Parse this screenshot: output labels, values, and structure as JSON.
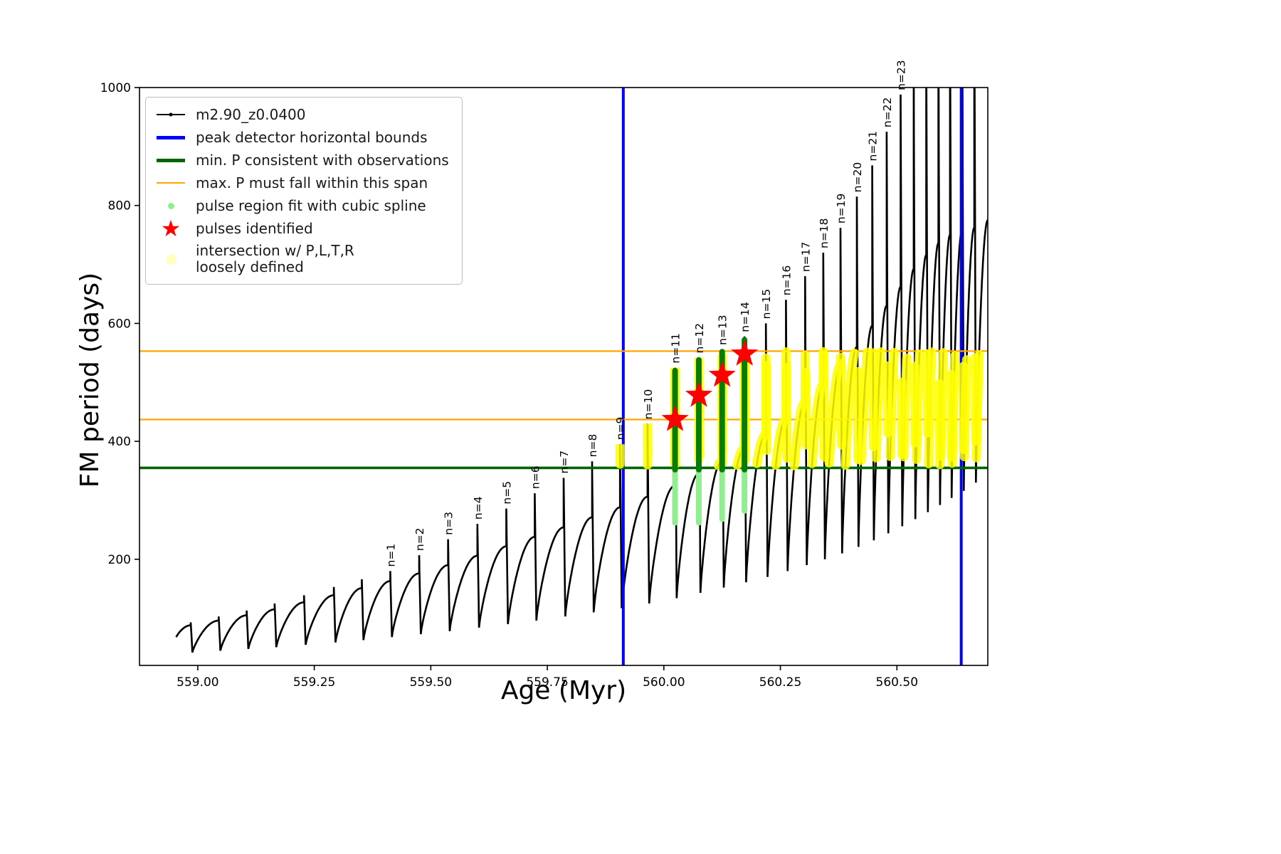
{
  "figure": {
    "background": "#ffffff"
  },
  "legend": {
    "items": [
      {
        "label": "m2.90_z0.0400",
        "marker": "line-dot",
        "color": "#000000"
      },
      {
        "label": "peak detector horizontal bounds",
        "marker": "thick-line",
        "color": "#0000ff"
      },
      {
        "label": "min. P consistent with observations",
        "marker": "thick-line",
        "color": "#006400"
      },
      {
        "label": "max. P must fall within this span",
        "marker": "line",
        "color": "#ffa500"
      },
      {
        "label": "pulse region fit with cubic spline",
        "marker": "dot",
        "color": "#90ee90"
      },
      {
        "label": "pulses identified",
        "marker": "star",
        "color": "#ff0000"
      },
      {
        "label": "intersection w/ P,L,T,R\nloosely defined",
        "marker": "dot-large",
        "color": "#ffffc2"
      }
    ]
  },
  "chart_data": {
    "type": "line",
    "series_name": "m2.90_z0.0400",
    "title": "",
    "xlabel": "Age (Myr)",
    "ylabel": "FM period (days)",
    "xlim": [
      558.875,
      560.695
    ],
    "ylim": [
      20,
      1000
    ],
    "grid": false,
    "legend_position": "upper-left",
    "x_ticks": [
      {
        "value": 559.0,
        "label": "559.00"
      },
      {
        "value": 559.25,
        "label": "559.25"
      },
      {
        "value": 559.5,
        "label": "559.50"
      },
      {
        "value": 559.75,
        "label": "559.75"
      },
      {
        "value": 560.0,
        "label": "560.00"
      },
      {
        "value": 560.25,
        "label": "560.25"
      },
      {
        "value": 560.5,
        "label": "560.50"
      }
    ],
    "y_ticks": [
      {
        "value": 200,
        "label": "200"
      },
      {
        "value": 400,
        "label": "400"
      },
      {
        "value": 600,
        "label": "600"
      },
      {
        "value": 800,
        "label": "800"
      },
      {
        "value": 1000,
        "label": "1000"
      }
    ],
    "curve_color": "#000000",
    "curve_start": {
      "age": 558.954,
      "value": 68
    },
    "final_hump": 775,
    "vertical_bounds": {
      "color": "#0000ff",
      "ages": [
        559.913,
        560.638
      ]
    },
    "min_p_line": {
      "color": "#006400",
      "value": 355
    },
    "max_p_span": {
      "color": "#ffa500",
      "values": [
        437,
        553
      ]
    },
    "yellow_band": {
      "color": "#ffff00",
      "age_min": 559.88,
      "period_range": [
        358,
        552
      ]
    },
    "pale_green_color": "#90ee90",
    "dark_green_color": "#067d06",
    "star_color": "#ff0000",
    "stars": [
      {
        "age": 560.024,
        "period": 437
      },
      {
        "age": 560.075,
        "period": 478
      },
      {
        "age": 560.125,
        "period": 512
      },
      {
        "age": 560.173,
        "period": 548
      }
    ],
    "pale_green_columns": [
      {
        "age": 560.024,
        "from": 262,
        "to": 352
      },
      {
        "age": 560.075,
        "from": 262,
        "to": 352
      },
      {
        "age": 560.125,
        "from": 268,
        "to": 352
      },
      {
        "age": 560.173,
        "from": 282,
        "to": 352
      }
    ],
    "dark_green_columns": [
      {
        "age": 560.024,
        "from": 352,
        "to": 520
      },
      {
        "age": 560.075,
        "from": 352,
        "to": 538
      },
      {
        "age": 560.125,
        "from": 352,
        "to": 552
      },
      {
        "age": 560.173,
        "from": 352,
        "to": 572
      }
    ],
    "pulses": [
      {
        "age": 558.985,
        "hump": 88,
        "spike": 93,
        "min_next": 42,
        "label": ""
      },
      {
        "age": 559.045,
        "hump": 96,
        "spike": 103,
        "min_next": 45,
        "label": ""
      },
      {
        "age": 559.105,
        "hump": 105,
        "spike": 113,
        "min_next": 48,
        "label": ""
      },
      {
        "age": 559.165,
        "hump": 115,
        "spike": 125,
        "min_next": 51,
        "label": ""
      },
      {
        "age": 559.228,
        "hump": 127,
        "spike": 139,
        "min_next": 55,
        "label": ""
      },
      {
        "age": 559.292,
        "hump": 139,
        "spike": 153,
        "min_next": 59,
        "label": ""
      },
      {
        "age": 559.352,
        "hump": 151,
        "spike": 166,
        "min_next": 63,
        "label": ""
      },
      {
        "age": 559.413,
        "hump": 163,
        "spike": 180,
        "min_next": 68,
        "label": "n=1"
      },
      {
        "age": 559.475,
        "hump": 176,
        "spike": 207,
        "min_next": 73,
        "label": "n=2"
      },
      {
        "age": 559.537,
        "hump": 190,
        "spike": 234,
        "min_next": 78,
        "label": "n=3"
      },
      {
        "age": 559.6,
        "hump": 206,
        "spike": 260,
        "min_next": 84,
        "label": "n=4"
      },
      {
        "age": 559.662,
        "hump": 222,
        "spike": 286,
        "min_next": 90,
        "label": "n=5"
      },
      {
        "age": 559.723,
        "hump": 238,
        "spike": 312,
        "min_next": 96,
        "label": "n=6"
      },
      {
        "age": 559.785,
        "hump": 254,
        "spike": 338,
        "min_next": 103,
        "label": "n=7"
      },
      {
        "age": 559.846,
        "hump": 271,
        "spike": 366,
        "min_next": 110,
        "label": "n=8"
      },
      {
        "age": 559.906,
        "hump": 288,
        "spike": 395,
        "min_next": 117,
        "label": "n=9"
      },
      {
        "age": 559.965,
        "hump": 306,
        "spike": 430,
        "min_next": 125,
        "label": "n=10"
      },
      {
        "age": 560.024,
        "hump": 325,
        "spike": 525,
        "min_next": 134,
        "label": "n=11"
      },
      {
        "age": 560.075,
        "hump": 345,
        "spike": 542,
        "min_next": 143,
        "label": "n=12"
      },
      {
        "age": 560.125,
        "hump": 366,
        "spike": 556,
        "min_next": 152,
        "label": "n=13"
      },
      {
        "age": 560.173,
        "hump": 388,
        "spike": 578,
        "min_next": 161,
        "label": "n=14"
      },
      {
        "age": 560.219,
        "hump": 412,
        "spike": 600,
        "min_next": 170,
        "label": "n=15"
      },
      {
        "age": 560.262,
        "hump": 438,
        "spike": 640,
        "min_next": 180,
        "label": "n=16"
      },
      {
        "age": 560.303,
        "hump": 466,
        "spike": 680,
        "min_next": 190,
        "label": "n=17"
      },
      {
        "age": 560.342,
        "hump": 496,
        "spike": 720,
        "min_next": 200,
        "label": "n=18"
      },
      {
        "age": 560.379,
        "hump": 528,
        "spike": 762,
        "min_next": 210,
        "label": "n=19"
      },
      {
        "age": 560.414,
        "hump": 560,
        "spike": 815,
        "min_next": 221,
        "label": "n=20"
      },
      {
        "age": 560.447,
        "hump": 596,
        "spike": 868,
        "min_next": 232,
        "label": "n=21"
      },
      {
        "age": 560.478,
        "hump": 630,
        "spike": 925,
        "min_next": 244,
        "label": "n=22"
      },
      {
        "age": 560.508,
        "hump": 662,
        "spike": 988,
        "min_next": 256,
        "label": "n=23"
      },
      {
        "age": 560.536,
        "hump": 692,
        "spike": 1045,
        "min_next": 268,
        "label": ""
      },
      {
        "age": 560.563,
        "hump": 716,
        "spike": 1085,
        "min_next": 280,
        "label": ""
      },
      {
        "age": 560.589,
        "hump": 736,
        "spike": 1115,
        "min_next": 292,
        "label": ""
      },
      {
        "age": 560.614,
        "hump": 750,
        "spike": 1140,
        "min_next": 304,
        "label": ""
      },
      {
        "age": 560.64,
        "hump": 758,
        "spike": 1160,
        "min_next": 316,
        "label": ""
      },
      {
        "age": 560.666,
        "hump": 762,
        "spike": 1175,
        "min_next": 330,
        "label": ""
      }
    ]
  },
  "axes": {
    "xlabel": "Age (Myr)",
    "ylabel": "FM period (days)"
  }
}
